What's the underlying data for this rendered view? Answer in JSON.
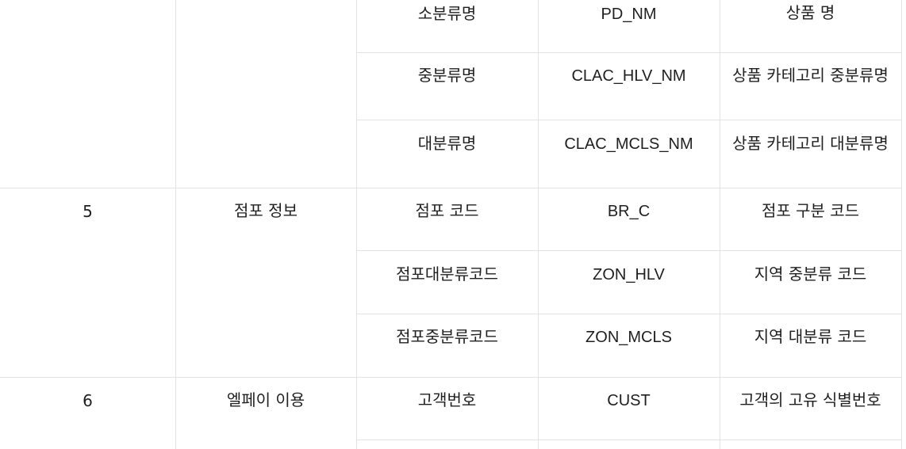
{
  "rows": [
    {
      "name": "소분류명",
      "field": "PD_NM",
      "desc": "상품 명"
    },
    {
      "name": "중분류명",
      "field": "CLAC_HLV_NM",
      "desc": "상품 카테고리 중분류명"
    },
    {
      "name": "대분류명",
      "field": "CLAC_MCLS_NM",
      "desc": "상품 카테고리 대분류명"
    },
    {
      "num": "5",
      "group": "점포 정보",
      "name": "점포 코드",
      "field": "BR_C",
      "desc": "점포 구분 코드"
    },
    {
      "name": "점포대분류코드",
      "field": "ZON_HLV",
      "desc": "지역 중분류 코드"
    },
    {
      "name": "점포중분류코드",
      "field": "ZON_MCLS",
      "desc": "지역 대분류 코드"
    },
    {
      "num": "6",
      "group": "엘페이 이용",
      "name": "고객번호",
      "field": "CUST",
      "desc": "고객의 고유 식별번호"
    }
  ]
}
